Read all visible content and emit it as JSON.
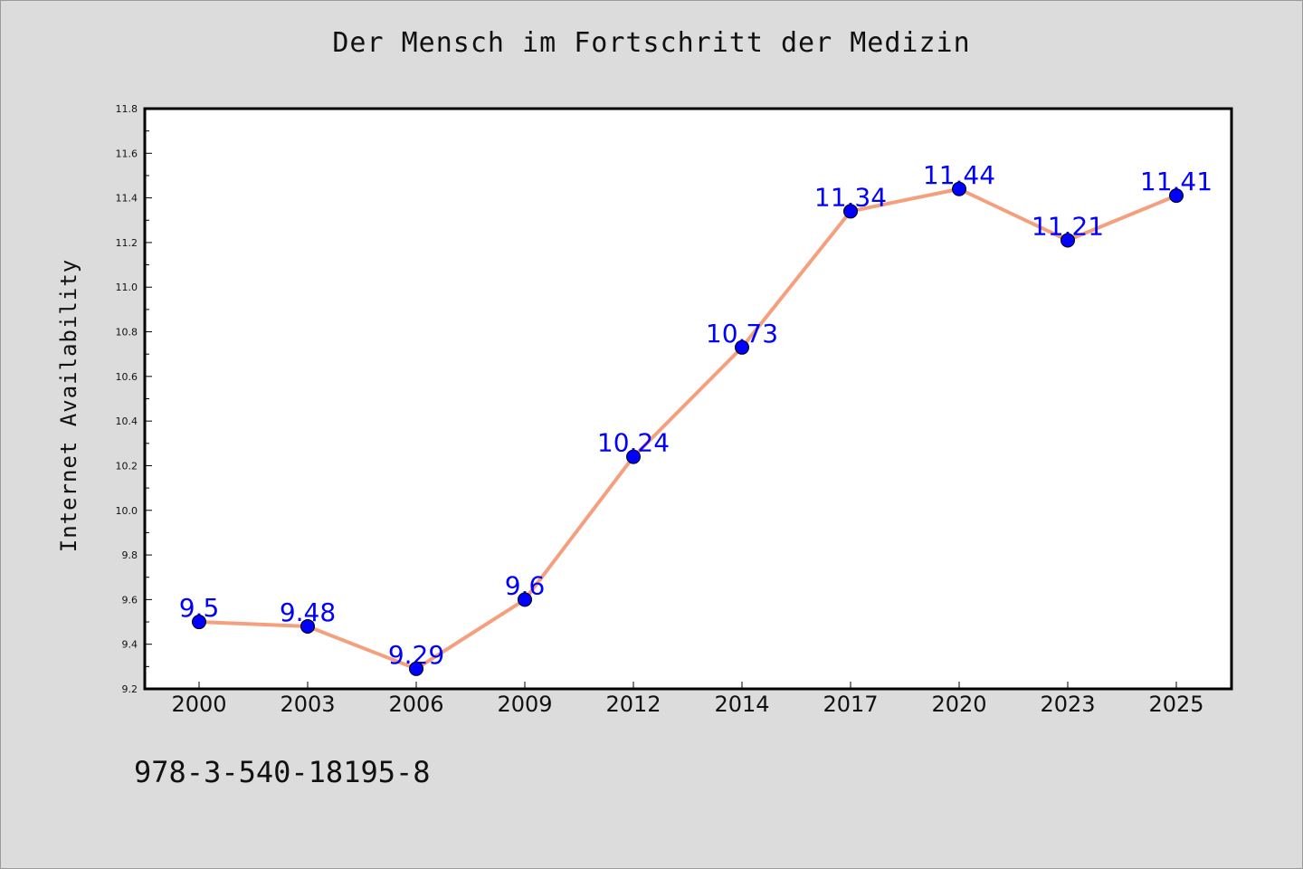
{
  "chart_data": {
    "type": "line",
    "title": "Der Mensch im Fortschritt der Medizin",
    "xlabel": "",
    "ylabel": "Internet Availability",
    "categories": [
      "2000",
      "2003",
      "2006",
      "2009",
      "2012",
      "2014",
      "2017",
      "2020",
      "2023",
      "2025"
    ],
    "series": [
      {
        "values": [
          9.5,
          9.48,
          9.29,
          9.6,
          10.24,
          10.73,
          11.34,
          11.44,
          11.21,
          11.41
        ],
        "data_labels": [
          "9.5",
          "9.48",
          "9.29",
          "9.6",
          "10.24",
          "10.73",
          "11.34",
          "11.44",
          "11.21",
          "11.41"
        ]
      }
    ],
    "ylim": [
      9.2,
      11.8
    ],
    "yticks": [
      "9.2",
      "9.4",
      "9.6",
      "9.8",
      "10.0",
      "10.2",
      "10.4",
      "10.6",
      "10.8",
      "11.0",
      "11.2",
      "11.4",
      "11.6",
      "11.8"
    ],
    "grid": false,
    "line_color": "#f4a07e",
    "marker_color": "#0000ff",
    "label_color": "#0000ff"
  },
  "footer": {
    "isbn": "978-3-540-18195-8"
  },
  "colors": {
    "background": "#dcdcdc",
    "plot_background": "#ffffff"
  }
}
